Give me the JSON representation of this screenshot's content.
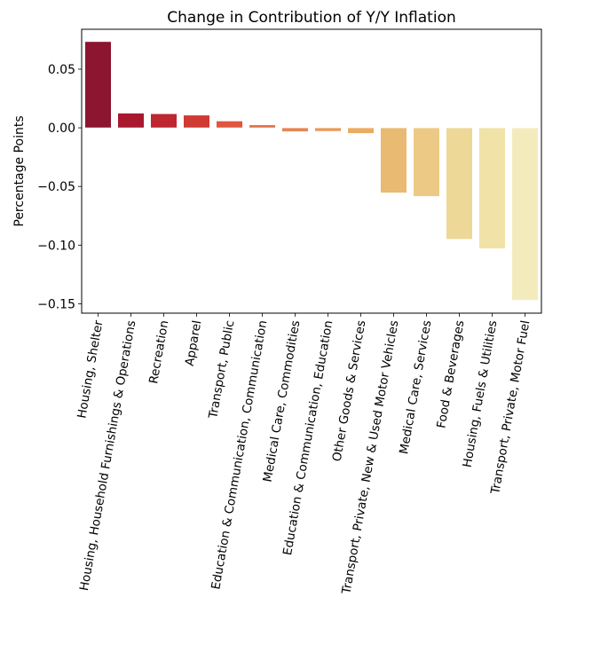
{
  "chart_data": {
    "type": "bar",
    "title": "Change in Contribution of Y/Y Inflation",
    "xlabel": "",
    "ylabel": "Percentage Points",
    "ylim": [
      -0.158,
      0.084
    ],
    "grid": false,
    "legend": "none",
    "yticks": [
      0.05,
      0.0,
      -0.05,
      -0.1,
      -0.15
    ],
    "ytick_labels": [
      "0.05",
      "0.00",
      "−0.05",
      "−0.10",
      "−0.15"
    ],
    "categories": [
      "Housing, Shelter",
      "Housing, Household Furnishings & Operations",
      "Recreation",
      "Apparel",
      "Transport, Public",
      "Education & Communication, Communication",
      "Medical Care, Commodities",
      "Education & Communication, Education",
      "Other Goods & Services",
      "Transport, Private, New & Used Motor Vehicles",
      "Medical Care, Services",
      "Food & Beverages",
      "Housing, Fuels & Utilities",
      "Transport, Private, Motor Fuel"
    ],
    "values": [
      0.0735,
      0.0125,
      0.012,
      0.0108,
      0.0058,
      0.0025,
      -0.0033,
      -0.003,
      -0.0048,
      -0.0555,
      -0.0585,
      -0.095,
      -0.103,
      -0.147
    ],
    "colors": [
      "#8c1530",
      "#a8182f",
      "#be2630",
      "#cf3a33",
      "#df5640",
      "#e2714a",
      "#e58653",
      "#e89a5b",
      "#eaac62",
      "#e9ba72",
      "#ecca85",
      "#eed898",
      "#f1e2a7",
      "#f4ebbd"
    ]
  }
}
